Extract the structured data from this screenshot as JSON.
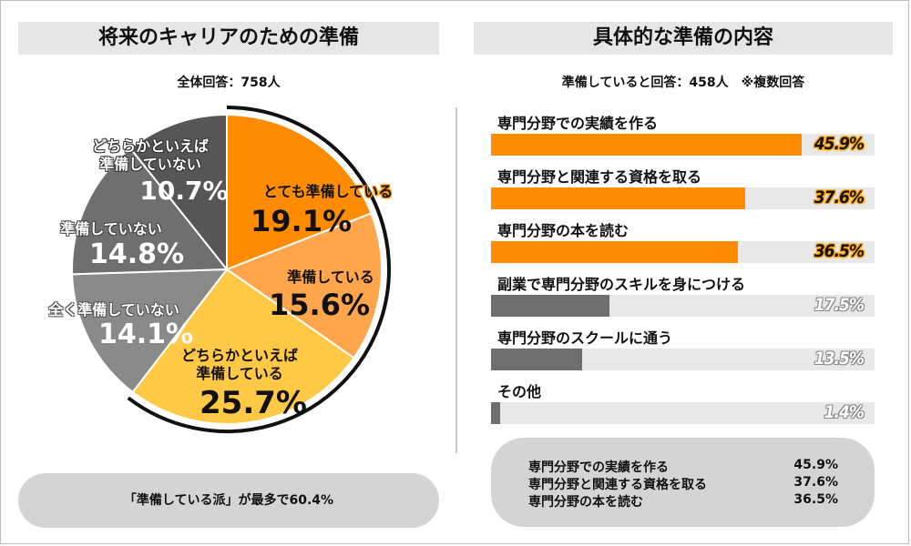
{
  "left": {
    "title": "将来のキャリアのための準備",
    "subtitle": "全体回答：758人",
    "footer": "「準備している派」が最多で60.4%"
  },
  "right": {
    "title": "具体的な準備の内容",
    "subtitle": "準備していると回答：458人　※複数回答"
  },
  "chart_data": [
    {
      "type": "pie",
      "title": "将来のキャリアのための準備",
      "subtitle": "全体回答：758人",
      "slices": [
        {
          "label": "とても準備している",
          "value": 19.1,
          "display": "19.1%",
          "color": "#ff8c00"
        },
        {
          "label": "準備している",
          "value": 15.6,
          "display": "15.6%",
          "color": "#ffa64d"
        },
        {
          "label_line1": "どちらかといえば",
          "label_line2": "準備している",
          "value": 25.7,
          "display": "25.7%",
          "color": "#ffc845"
        },
        {
          "label": "全く準備していない",
          "value": 14.1,
          "display": "14.1%",
          "color": "#8a8a8a"
        },
        {
          "label": "準備していない",
          "value": 14.8,
          "display": "14.8%",
          "color": "#6f6f6f"
        },
        {
          "label_line1": "どちらかといえば",
          "label_line2": "準備していない",
          "value": 10.7,
          "display": "10.7%",
          "color": "#565656"
        }
      ]
    },
    {
      "type": "bar",
      "orientation": "horizontal",
      "title": "具体的な準備の内容",
      "subtitle": "準備していると回答：458人　※複数回答",
      "xlim": [
        0,
        50
      ],
      "bars": [
        {
          "label": "専門分野での実績を作る",
          "value": 45.9,
          "display": "45.9%",
          "color": "#ff8c00"
        },
        {
          "label": "専門分野と関連する資格を取る",
          "value": 37.6,
          "display": "37.6%",
          "color": "#ff8c00"
        },
        {
          "label": "専門分野の本を読む",
          "value": 36.5,
          "display": "36.5%",
          "color": "#ff8c00"
        },
        {
          "label": "副業で専門分野のスキルを身につける",
          "value": 17.5,
          "display": "17.5%",
          "color": "#6e6e6e"
        },
        {
          "label": "専門分野のスクールに通う",
          "value": 13.5,
          "display": "13.5%",
          "color": "#6e6e6e"
        },
        {
          "label": "その他",
          "value": 1.4,
          "display": "1.4%",
          "color": "#6e6e6e"
        }
      ]
    }
  ],
  "summary": [
    {
      "label": "専門分野での実績を作る",
      "value": "45.9%"
    },
    {
      "label": "専門分野と関連する資格を取る",
      "value": "37.6%"
    },
    {
      "label": "専門分野の本を読む",
      "value": "36.5%"
    }
  ]
}
